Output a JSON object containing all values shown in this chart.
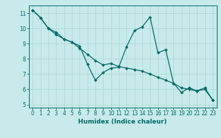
{
  "title": "",
  "xlabel": "Humidex (Indice chaleur)",
  "ylabel": "",
  "bg_color": "#c8eaea",
  "grid_color": "#b0d8d8",
  "line_color": "#006868",
  "marker_color": "#006868",
  "xlim": [
    -0.5,
    23.5
  ],
  "ylim": [
    4.8,
    11.5
  ],
  "xticks": [
    0,
    1,
    2,
    3,
    4,
    5,
    6,
    7,
    8,
    9,
    10,
    11,
    12,
    13,
    14,
    15,
    16,
    17,
    18,
    19,
    20,
    21,
    22,
    23
  ],
  "yticks": [
    5,
    6,
    7,
    8,
    9,
    10,
    11
  ],
  "series1_x": [
    0,
    1,
    2,
    3,
    4,
    5,
    6,
    7,
    8,
    9,
    10,
    11,
    12,
    13,
    14,
    15,
    16,
    17,
    18,
    19,
    20,
    21,
    22,
    23
  ],
  "series1_y": [
    11.2,
    10.7,
    10.0,
    9.75,
    9.3,
    9.1,
    8.85,
    7.65,
    6.6,
    7.1,
    7.4,
    7.45,
    8.8,
    9.85,
    10.1,
    10.75,
    8.4,
    8.6,
    6.4,
    5.8,
    6.1,
    5.9,
    6.1,
    5.3
  ],
  "series2_x": [
    0,
    1,
    2,
    3,
    4,
    5,
    6,
    7,
    8,
    9,
    10,
    11,
    12,
    13,
    14,
    15,
    16,
    17,
    18,
    19,
    20,
    21,
    22,
    23
  ],
  "series2_y": [
    11.2,
    10.7,
    10.0,
    9.6,
    9.3,
    9.1,
    8.7,
    8.3,
    7.9,
    7.6,
    7.7,
    7.5,
    7.4,
    7.3,
    7.2,
    7.0,
    6.8,
    6.6,
    6.4,
    6.1,
    6.0,
    5.9,
    6.0,
    5.3
  ],
  "tick_fontsize": 5.5,
  "xlabel_fontsize": 6.5,
  "xlabel_fontweight": "bold"
}
